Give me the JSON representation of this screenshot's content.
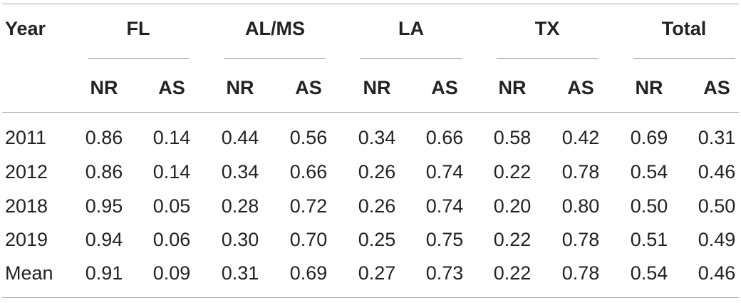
{
  "table": {
    "year_header": "Year",
    "groups": [
      "FL",
      "AL/MS",
      "LA",
      "TX",
      "Total"
    ],
    "subheaders": [
      "NR",
      "AS",
      "NR",
      "AS",
      "NR",
      "AS",
      "NR",
      "AS",
      "NR",
      "AS"
    ],
    "rows": [
      {
        "year": "2011",
        "values": [
          "0.86",
          "0.14",
          "0.44",
          "0.56",
          "0.34",
          "0.66",
          "0.58",
          "0.42",
          "0.69",
          "0.31"
        ]
      },
      {
        "year": "2012",
        "values": [
          "0.86",
          "0.14",
          "0.34",
          "0.66",
          "0.26",
          "0.74",
          "0.22",
          "0.78",
          "0.54",
          "0.46"
        ]
      },
      {
        "year": "2018",
        "values": [
          "0.95",
          "0.05",
          "0.28",
          "0.72",
          "0.26",
          "0.74",
          "0.20",
          "0.80",
          "0.50",
          "0.50"
        ]
      },
      {
        "year": "2019",
        "values": [
          "0.94",
          "0.06",
          "0.30",
          "0.70",
          "0.25",
          "0.75",
          "0.22",
          "0.78",
          "0.51",
          "0.49"
        ]
      },
      {
        "year": "Mean",
        "values": [
          "0.91",
          "0.09",
          "0.31",
          "0.69",
          "0.27",
          "0.73",
          "0.22",
          "0.78",
          "0.54",
          "0.46"
        ]
      }
    ]
  }
}
